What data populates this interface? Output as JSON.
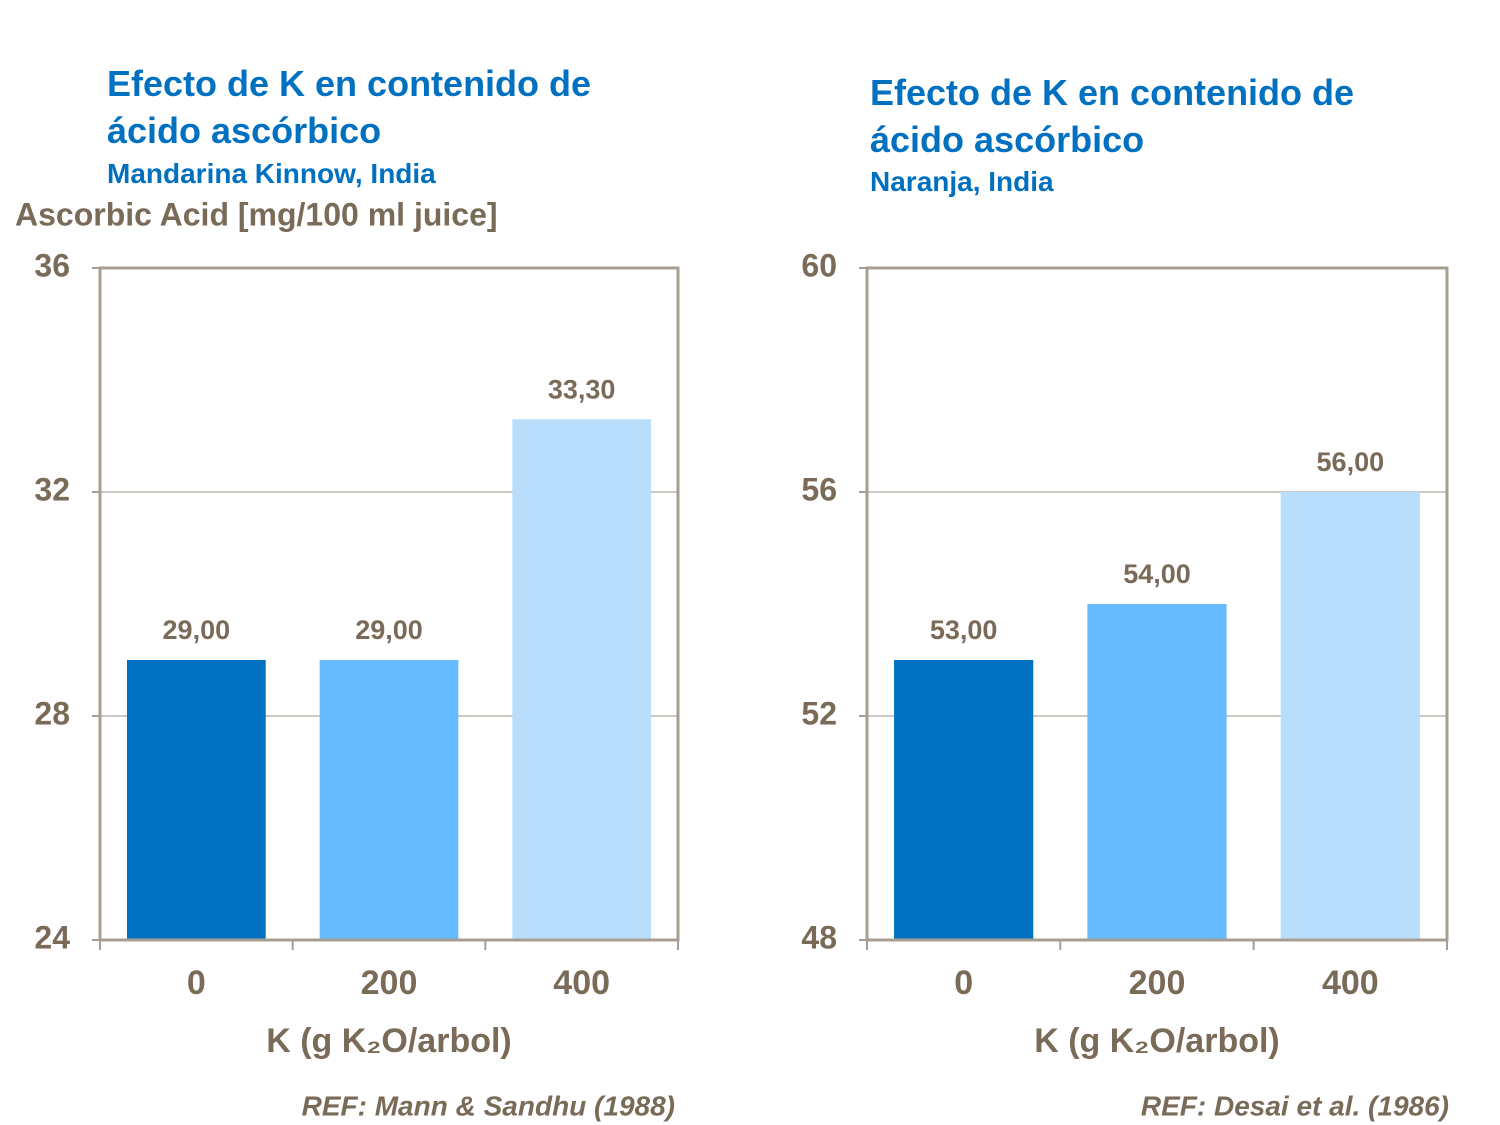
{
  "chart_data": [
    {
      "type": "bar",
      "title": "Efecto de K en contenido de ácido ascórbico",
      "subtitle": "Mandarina Kinnow, India",
      "y_label": "Ascorbic Acid [mg/100 ml juice]",
      "x_label": "K (g K₂O/arbol)",
      "reference": "REF: Mann & Sandhu (1988)",
      "categories": [
        "0",
        "200",
        "400"
      ],
      "values": [
        29,
        29,
        33.3
      ],
      "value_labels": [
        "29,00",
        "29,00",
        "33,30"
      ],
      "colors": [
        "#0070c0",
        "#66bbff",
        "#b8defc"
      ],
      "ylim": [
        24,
        36
      ],
      "yticks": [
        24,
        28,
        32,
        36
      ],
      "grid": true
    },
    {
      "type": "bar",
      "title": "Efecto de K en contenido de ácido ascórbico",
      "subtitle": "Naranja, India",
      "x_label": "K (g K₂O/arbol)",
      "reference": "REF: Desai et al. (1986)",
      "categories": [
        "0",
        "200",
        "400"
      ],
      "values": [
        53,
        54,
        56
      ],
      "value_labels": [
        "53,00",
        "54,00",
        "56,00"
      ],
      "colors": [
        "#0070c0",
        "#66bbff",
        "#b8defc"
      ],
      "ylim": [
        48,
        60
      ],
      "yticks": [
        48,
        52,
        56,
        60
      ],
      "grid": true
    }
  ]
}
